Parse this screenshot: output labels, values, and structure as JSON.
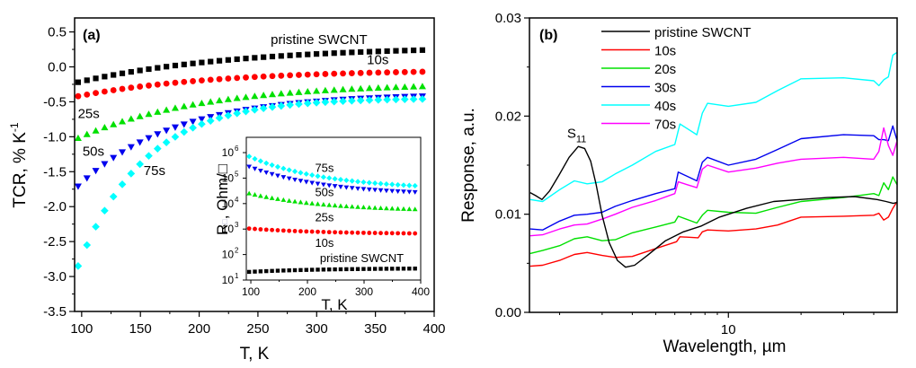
{
  "chart_data": [
    {
      "panel": "(a)",
      "type": "scatter",
      "xlabel": "T, K",
      "ylabel": "TCR, % K",
      "ylabel_superscript": "-1",
      "xlim": [
        94,
        400
      ],
      "ylim": [
        -3.5,
        0.7
      ],
      "xticks": [
        100,
        150,
        200,
        250,
        300,
        350,
        400
      ],
      "xtick_labels": [
        "100",
        "150",
        "200",
        "250",
        "300",
        "350",
        "400"
      ],
      "yticks": [
        0.5,
        0.0,
        -0.5,
        -1.0,
        -1.5,
        -2.0,
        -2.5,
        -3.0,
        -3.5
      ],
      "ytick_labels": [
        "0.5",
        "0.0",
        "-0.5",
        "-1.0",
        "-1.5",
        "-2.0",
        "-2.5",
        "-3.0",
        "-3.5"
      ],
      "grid": false,
      "series": [
        {
          "name": "pristine SWCNT",
          "color": "#000000",
          "marker": "square",
          "T_start": 97,
          "T_end": 390,
          "n": 40,
          "y_start": -0.22,
          "y_end": 0.24,
          "shape": 2.2
        },
        {
          "name": "10s",
          "color": "#ff0000",
          "marker": "circle",
          "T_start": 97,
          "T_end": 390,
          "n": 40,
          "y_start": -0.42,
          "y_end": -0.07,
          "shape": 2.5
        },
        {
          "name": "25s",
          "color": "#00e000",
          "marker": "triangle-up",
          "T_start": 97,
          "T_end": 390,
          "n": 40,
          "y_start": -1.02,
          "y_end": -0.28,
          "shape": 2.8
        },
        {
          "name": "50s",
          "color": "#0000ee",
          "marker": "triangle-down",
          "T_start": 97,
          "T_end": 390,
          "n": 40,
          "y_start": -1.71,
          "y_end": -0.42,
          "shape": 3.6
        },
        {
          "name": "75s",
          "color": "#00ffff",
          "marker": "diamond",
          "T_start": 97,
          "T_end": 390,
          "n": 40,
          "y_start": -2.85,
          "y_end": -0.46,
          "shape": 5.2
        }
      ],
      "annotations": [
        {
          "text": "pristine SWCNT",
          "x": 302,
          "y": 0.33
        },
        {
          "text": "10s",
          "x": 352,
          "y": 0.04
        },
        {
          "text": "25s",
          "x": 106,
          "y": -0.73
        },
        {
          "text": "50s",
          "x": 110,
          "y": -1.27
        },
        {
          "text": "75s",
          "x": 162,
          "y": -1.55
        }
      ],
      "panel_label": "(a)",
      "inset": {
        "type": "scatter",
        "xlabel": "T, K",
        "ylabel": "R",
        "ylabel_subscript": "□",
        "ylabel_suffix": ", Ohm/□",
        "xlim": [
          92,
          400
        ],
        "ylog_range": [
          1,
          6.6
        ],
        "yscale": "log",
        "xticks": [
          100,
          200,
          300,
          400
        ],
        "xtick_labels": [
          "100",
          "200",
          "300",
          "400"
        ],
        "yticks_exp": [
          1,
          2,
          3,
          4,
          5,
          6
        ],
        "ytick_base": "10",
        "series": [
          {
            "name": "pristine SWCNT",
            "color": "#000000",
            "marker": "square",
            "logR_start": 1.32,
            "logR_end": 1.45
          },
          {
            "name": "10s",
            "color": "#ff0000",
            "marker": "circle",
            "logR_start": 3.02,
            "logR_end": 2.83
          },
          {
            "name": "25s",
            "color": "#00e000",
            "marker": "triangle-up",
            "logR_start": 4.4,
            "logR_end": 3.78
          },
          {
            "name": "50s",
            "color": "#0000ee",
            "marker": "triangle-down",
            "logR_start": 5.45,
            "logR_end": 4.45
          },
          {
            "name": "75s",
            "color": "#00ffff",
            "marker": "diamond",
            "logR_start": 5.85,
            "logR_end": 4.7
          }
        ],
        "annotations": [
          {
            "text": "75s",
            "x": 230,
            "logy": 5.25
          },
          {
            "text": "50s",
            "x": 230,
            "logy": 4.3
          },
          {
            "text": "25s",
            "x": 230,
            "logy": 3.3
          },
          {
            "text": "10s",
            "x": 230,
            "logy": 2.3
          },
          {
            "text": "pristine SWCNT",
            "x": 296,
            "logy": 1.7
          }
        ]
      }
    },
    {
      "panel": "(b)",
      "type": "line",
      "xlabel": "Wavelength, µm",
      "ylabel": "Response, a.u.",
      "xscale": "log",
      "xlim": [
        1.5,
        50
      ],
      "ylim": [
        0.0,
        0.03
      ],
      "xticks_major": [
        10
      ],
      "xtick_labels": [
        "10"
      ],
      "xticks_minor": [
        2,
        3,
        4,
        5,
        6,
        7,
        8,
        9,
        20,
        30,
        40
      ],
      "yticks": [
        0.0,
        0.01,
        0.02,
        0.03
      ],
      "ytick_labels": [
        "0.00",
        "0.01",
        "0.02",
        "0.03"
      ],
      "yticks_minor": [
        0.005,
        0.015,
        0.025
      ],
      "grid": false,
      "legend": "top-center",
      "panel_label": "(b)",
      "annotation": {
        "text": "S",
        "sub": "11",
        "x": 2.3,
        "y": 0.0178
      },
      "series": [
        {
          "name": "pristine SWCNT",
          "color": "#000000",
          "x": [
            1.51,
            1.59,
            1.69,
            1.82,
            1.99,
            2.19,
            2.39,
            2.54,
            2.69,
            2.83,
            3.0,
            3.21,
            3.47,
            3.75,
            4.09,
            4.62,
            5.49,
            6.51,
            7.73,
            9.18,
            11.9,
            15.4,
            19.8,
            25.7,
            33.3,
            41.3,
            45.0,
            48.2,
            50.0
          ],
          "y": [
            0.0122,
            0.0119,
            0.0115,
            0.0124,
            0.014,
            0.0158,
            0.0169,
            0.0167,
            0.0154,
            0.0131,
            0.0099,
            0.0071,
            0.0053,
            0.0046,
            0.0048,
            0.0058,
            0.0073,
            0.0082,
            0.0088,
            0.0097,
            0.0106,
            0.0113,
            0.0115,
            0.0117,
            0.0118,
            0.0115,
            0.0113,
            0.0111,
            0.0112
          ]
        },
        {
          "name": "10s",
          "color": "#ff0000",
          "x": [
            1.51,
            1.7,
            2.0,
            2.3,
            2.6,
            3.0,
            3.4,
            4.0,
            5.0,
            6.1,
            6.3,
            7.5,
            7.8,
            8.2,
            10,
            13,
            16,
            20,
            30,
            40,
            42,
            44,
            46,
            48,
            50
          ],
          "y": [
            0.0047,
            0.0048,
            0.0053,
            0.0059,
            0.0061,
            0.0058,
            0.0056,
            0.0057,
            0.0065,
            0.0072,
            0.0077,
            0.0076,
            0.0082,
            0.0084,
            0.0083,
            0.0085,
            0.0089,
            0.0097,
            0.0098,
            0.0099,
            0.0101,
            0.0094,
            0.0097,
            0.0106,
            0.0113
          ]
        },
        {
          "name": "20s",
          "color": "#00e000",
          "x": [
            1.51,
            1.7,
            2.0,
            2.3,
            2.6,
            3.0,
            3.4,
            4.0,
            5.0,
            6.0,
            6.2,
            7.4,
            7.8,
            8.2,
            10,
            13,
            16,
            20,
            30,
            40,
            42,
            44,
            46,
            48,
            50
          ],
          "y": [
            0.006,
            0.0063,
            0.0068,
            0.0075,
            0.0077,
            0.0073,
            0.0074,
            0.0081,
            0.0087,
            0.0092,
            0.0098,
            0.0091,
            0.0099,
            0.0104,
            0.0102,
            0.0101,
            0.0107,
            0.0113,
            0.0117,
            0.0121,
            0.0119,
            0.0132,
            0.0125,
            0.0138,
            0.013
          ]
        },
        {
          "name": "30s",
          "color": "#0000ee",
          "x": [
            1.51,
            1.7,
            2.0,
            2.3,
            2.6,
            3.0,
            3.4,
            4.0,
            5.0,
            6.0,
            6.2,
            7.4,
            7.8,
            8.2,
            10,
            13,
            16,
            20,
            30,
            40,
            42,
            44,
            46,
            48,
            50
          ],
          "y": [
            0.0085,
            0.0084,
            0.0093,
            0.0099,
            0.01,
            0.0102,
            0.0108,
            0.0114,
            0.0121,
            0.0126,
            0.0143,
            0.0134,
            0.0153,
            0.0158,
            0.015,
            0.0156,
            0.0166,
            0.0177,
            0.0181,
            0.018,
            0.0176,
            0.0176,
            0.0175,
            0.019,
            0.0175
          ]
        },
        {
          "name": "40s",
          "color": "#00ffff",
          "x": [
            1.51,
            1.7,
            2.0,
            2.3,
            2.6,
            3.0,
            3.4,
            4.0,
            5.0,
            6.0,
            6.3,
            7.4,
            7.8,
            8.2,
            10,
            13,
            16,
            20,
            30,
            40,
            42,
            44,
            46,
            48,
            50
          ],
          "y": [
            0.0115,
            0.0113,
            0.0125,
            0.0134,
            0.0131,
            0.0133,
            0.0141,
            0.015,
            0.0164,
            0.0171,
            0.0192,
            0.0181,
            0.0203,
            0.0213,
            0.021,
            0.0214,
            0.0226,
            0.0238,
            0.0239,
            0.0236,
            0.0231,
            0.0237,
            0.024,
            0.0262,
            0.0265
          ]
        },
        {
          "name": "70s",
          "color": "#ff00ff",
          "x": [
            1.51,
            1.7,
            2.0,
            2.3,
            2.6,
            3.0,
            3.4,
            4.0,
            5.0,
            6.0,
            6.2,
            7.4,
            7.8,
            8.2,
            10,
            13,
            16,
            20,
            30,
            40,
            42,
            44,
            46,
            48,
            50
          ],
          "y": [
            0.0078,
            0.0079,
            0.0085,
            0.0089,
            0.009,
            0.0095,
            0.01,
            0.0107,
            0.0114,
            0.0121,
            0.0133,
            0.0127,
            0.0146,
            0.015,
            0.0143,
            0.0147,
            0.0152,
            0.0156,
            0.0158,
            0.0156,
            0.0164,
            0.0188,
            0.017,
            0.016,
            0.0175
          ]
        }
      ]
    }
  ]
}
